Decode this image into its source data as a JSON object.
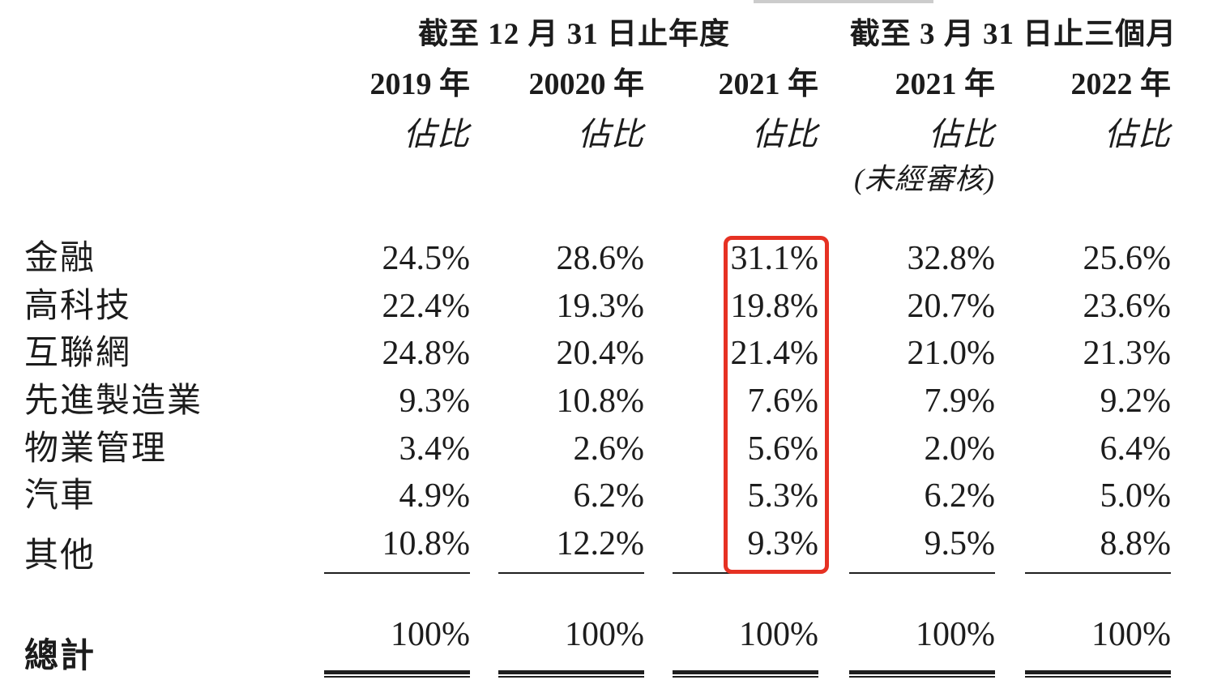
{
  "header": {
    "period1": "截至 12 月 31 日止年度",
    "period2": "截至 3 月 31 日止三個月",
    "columns": [
      {
        "year": "2019 年",
        "sub": "佔比"
      },
      {
        "year": "20020 年",
        "sub": "佔比"
      },
      {
        "year": "2021 年",
        "sub": "佔比"
      },
      {
        "year": "2021 年",
        "sub": "佔比",
        "note": "(未經審核)"
      },
      {
        "year": "2022 年",
        "sub": "佔比"
      }
    ]
  },
  "rows": [
    {
      "label": "金融",
      "values": [
        "24.5%",
        "28.6%",
        "31.1%",
        "32.8%",
        "25.6%"
      ]
    },
    {
      "label": "高科技",
      "values": [
        "22.4%",
        "19.3%",
        "19.8%",
        "20.7%",
        "23.6%"
      ]
    },
    {
      "label": "互聯網",
      "values": [
        "24.8%",
        "20.4%",
        "21.4%",
        "21.0%",
        "21.3%"
      ]
    },
    {
      "label": "先進製造業",
      "values": [
        "9.3%",
        "10.8%",
        "7.6%",
        "7.9%",
        "9.2%"
      ]
    },
    {
      "label": "物業管理",
      "values": [
        "3.4%",
        "2.6%",
        "5.6%",
        "2.0%",
        "6.4%"
      ]
    },
    {
      "label": "汽車",
      "values": [
        "4.9%",
        "6.2%",
        "5.3%",
        "6.2%",
        "5.0%"
      ]
    },
    {
      "label": "其他",
      "values": [
        "10.8%",
        "12.2%",
        "9.3%",
        "9.5%",
        "8.8%"
      ]
    }
  ],
  "total": {
    "label": "總計",
    "values": [
      "100%",
      "100%",
      "100%",
      "100%",
      "100%"
    ]
  },
  "annotation": {
    "highlighted_column_year": "2021 年",
    "highlight_color": "#e63123"
  }
}
